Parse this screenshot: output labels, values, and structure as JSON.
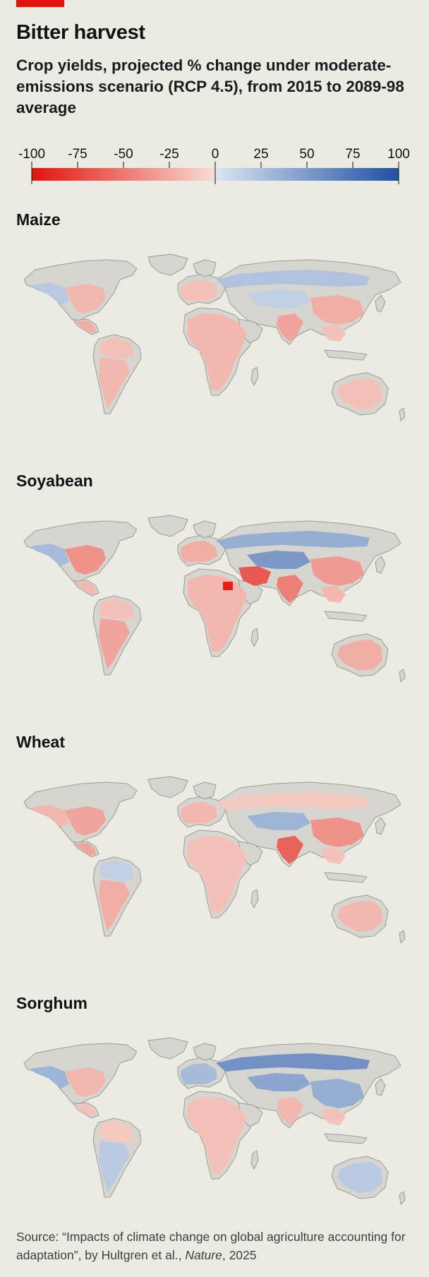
{
  "header": {
    "title": "Bitter harvest",
    "subtitle": "Crop yields, projected % change under moderate-emissions scenario (RCP 4.5), from 2015 to 2089-98 average"
  },
  "legend": {
    "ticks": [
      "-100",
      "-75",
      "-50",
      "-25",
      "0",
      "25",
      "50",
      "75",
      "100"
    ],
    "min": -100,
    "max": 100,
    "colors": {
      "neg_extreme": "#e3120b",
      "neg_light": "#f8ddd4",
      "pos_light": "#dbe6f3",
      "pos_extreme": "#1f4fa3"
    }
  },
  "colors": {
    "background": "#ecebe3",
    "land_no_data": "#d6d5cf",
    "accent": "#e3120b"
  },
  "panels": [
    {
      "title": "Maize",
      "regions": [
        {
          "region": "north-america-west",
          "change": 20
        },
        {
          "region": "north-america-east",
          "change": -20
        },
        {
          "region": "central-america",
          "change": -25
        },
        {
          "region": "south-america-north",
          "change": -15
        },
        {
          "region": "south-america-south",
          "change": -20
        },
        {
          "region": "europe",
          "change": -15
        },
        {
          "region": "africa",
          "change": -20
        },
        {
          "region": "russia",
          "change": 25
        },
        {
          "region": "central-asia",
          "change": 15
        },
        {
          "region": "south-asia",
          "change": -30
        },
        {
          "region": "china",
          "change": -25
        },
        {
          "region": "southeast-asia",
          "change": -15
        },
        {
          "region": "australia",
          "change": -15
        }
      ]
    },
    {
      "title": "Soyabean",
      "regions": [
        {
          "region": "north-america-west",
          "change": 30
        },
        {
          "region": "north-america-east",
          "change": -40
        },
        {
          "region": "central-america",
          "change": -20
        },
        {
          "region": "south-america-north",
          "change": -15
        },
        {
          "region": "south-america-south",
          "change": -30
        },
        {
          "region": "europe",
          "change": -25
        },
        {
          "region": "africa",
          "change": -20
        },
        {
          "region": "russia",
          "change": 40
        },
        {
          "region": "middle-east",
          "change": -70
        },
        {
          "region": "egypt",
          "change": -100
        },
        {
          "region": "central-asia",
          "change": 55
        },
        {
          "region": "south-asia",
          "change": -50
        },
        {
          "region": "china",
          "change": -35
        },
        {
          "region": "southeast-asia",
          "change": -20
        },
        {
          "region": "australia",
          "change": -25
        }
      ]
    },
    {
      "title": "Wheat",
      "regions": [
        {
          "region": "north-america-west",
          "change": -20
        },
        {
          "region": "north-america-east",
          "change": -30
        },
        {
          "region": "central-america",
          "change": -30
        },
        {
          "region": "south-america-north",
          "change": 15
        },
        {
          "region": "south-america-south",
          "change": -25
        },
        {
          "region": "europe",
          "change": -20
        },
        {
          "region": "africa",
          "change": -15
        },
        {
          "region": "russia",
          "change": -10
        },
        {
          "region": "central-asia",
          "change": 35
        },
        {
          "region": "south-asia",
          "change": -65
        },
        {
          "region": "china",
          "change": -40
        },
        {
          "region": "southeast-asia",
          "change": -15
        },
        {
          "region": "australia",
          "change": -20
        }
      ]
    },
    {
      "title": "Sorghum",
      "regions": [
        {
          "region": "north-america-west",
          "change": 35
        },
        {
          "region": "north-america-east",
          "change": -20
        },
        {
          "region": "central-america",
          "change": -15
        },
        {
          "region": "south-america-north",
          "change": -10
        },
        {
          "region": "south-america-south",
          "change": 20
        },
        {
          "region": "europe",
          "change": 30
        },
        {
          "region": "africa",
          "change": -15
        },
        {
          "region": "russia",
          "change": 60
        },
        {
          "region": "central-asia",
          "change": 45
        },
        {
          "region": "south-asia",
          "change": -20
        },
        {
          "region": "china",
          "change": 40
        },
        {
          "region": "southeast-asia",
          "change": -15
        },
        {
          "region": "australia",
          "change": 20
        }
      ]
    }
  ],
  "footer": {
    "source_before": "Source: “Impacts of climate change on global agriculture accounting for adaptation”, by Hultgren et al., ",
    "source_journal": "Nature",
    "source_after": ", 2025"
  }
}
